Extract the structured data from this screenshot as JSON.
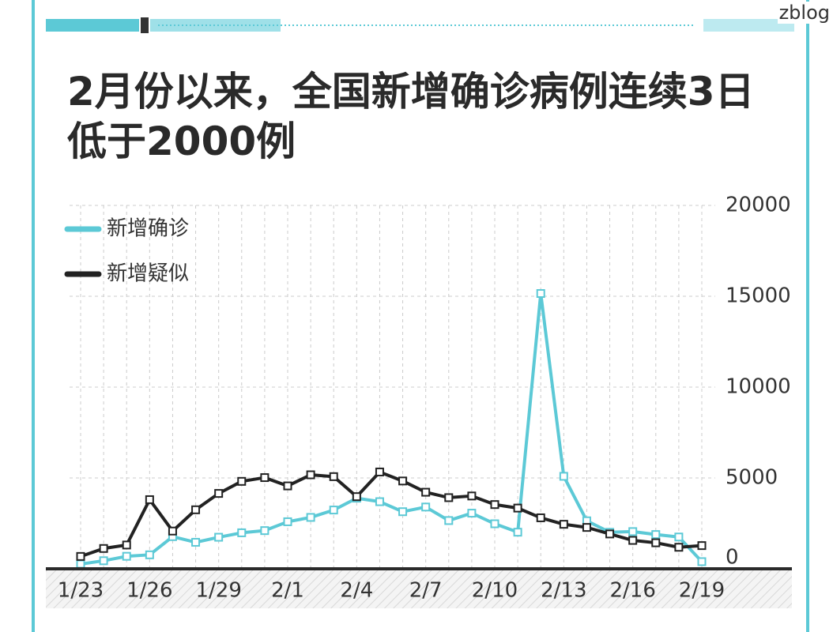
{
  "watermark": "zblog",
  "chart_data": {
    "type": "line",
    "title": "2月份以来，全国新增确诊病例连续3日低于2000例",
    "categories": [
      "1/23",
      null,
      null,
      "1/26",
      null,
      null,
      "1/29",
      null,
      null,
      "2/1",
      null,
      null,
      "2/4",
      null,
      null,
      "2/7",
      null,
      null,
      "2/10",
      null,
      null,
      "2/13",
      null,
      null,
      "2/16",
      null,
      null,
      "2/19"
    ],
    "series": [
      {
        "name": "新增确诊",
        "color": "#5cc9d6",
        "values": [
          259,
          444,
          688,
          769,
          1771,
          1459,
          1737,
          1982,
          2102,
          2590,
          2829,
          3235,
          3887,
          3694,
          3143,
          3399,
          2656,
          3062,
          2478,
          2015,
          15152,
          5090,
          2641,
          2009,
          2048,
          1886,
          1749,
          394
        ]
      },
      {
        "name": "新增疑似",
        "color": "#222222",
        "values": [
          680,
          1118,
          1309,
          3806,
          2077,
          3248,
          4148,
          4812,
          5019,
          4562,
          5173,
          5072,
          3971,
          5328,
          4833,
          4214,
          3916,
          4008,
          3536,
          3342,
          2807,
          2450,
          2277,
          1918,
          1563,
          1432,
          1185,
          1277
        ]
      }
    ],
    "ylim": [
      0,
      20000
    ],
    "yticks": [
      0,
      5000,
      10000,
      15000,
      20000
    ],
    "grid": true,
    "legend": "top-left"
  }
}
